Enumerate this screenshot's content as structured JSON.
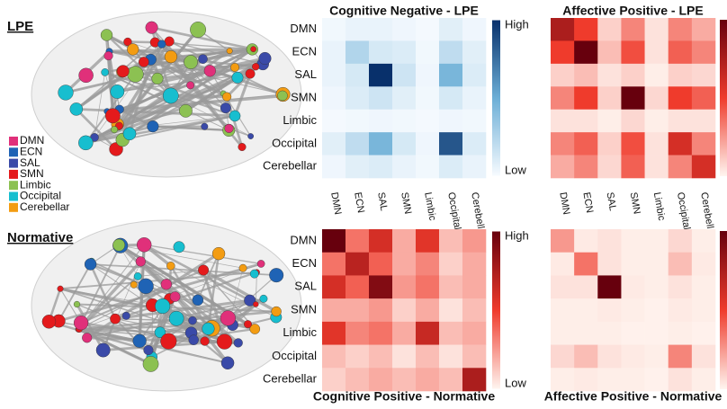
{
  "labels": {
    "lpe": "LPE",
    "normative": "Normative"
  },
  "legend": [
    {
      "name": "DMN",
      "color": "#e0307a"
    },
    {
      "name": "ECN",
      "color": "#1f63b5"
    },
    {
      "name": "SAL",
      "color": "#3a4aa8"
    },
    {
      "name": "SMN",
      "color": "#e41a1c"
    },
    {
      "name": "Limbic",
      "color": "#8cc152"
    },
    {
      "name": "Occipital",
      "color": "#17becf"
    },
    {
      "name": "Cerebellar",
      "color": "#f39c12"
    }
  ],
  "chart_data": [
    {
      "type": "heatmap",
      "title": "Cognitive Negative - LPE",
      "y_categories": [
        "DMN",
        "ECN",
        "SAL",
        "SMN",
        "Limbic",
        "Occipital",
        "Cerebellar"
      ],
      "x_categories": [
        "DMN",
        "ECN",
        "SAL",
        "SMN",
        "Limbic",
        "Occipital",
        "Cerebellar"
      ],
      "values": [
        [
          0.02,
          0.05,
          0.05,
          0.03,
          0.01,
          0.08,
          0.03
        ],
        [
          0.05,
          0.25,
          0.12,
          0.1,
          0.02,
          0.2,
          0.08
        ],
        [
          0.05,
          0.12,
          1.0,
          0.15,
          0.03,
          0.45,
          0.1
        ],
        [
          0.03,
          0.1,
          0.15,
          0.08,
          0.02,
          0.12,
          0.05
        ],
        [
          0.01,
          0.02,
          0.03,
          0.02,
          0.01,
          0.03,
          0.02
        ],
        [
          0.08,
          0.2,
          0.45,
          0.12,
          0.03,
          0.85,
          0.1
        ],
        [
          0.03,
          0.08,
          0.1,
          0.05,
          0.02,
          0.1,
          0.05
        ]
      ],
      "colors": [
        "#f7fbff",
        "#6baed6",
        "#08306b"
      ],
      "zlim": [
        0,
        1
      ],
      "zticks": [
        {
          "value": 1,
          "label": "High"
        },
        {
          "value": 0,
          "label": "Low"
        }
      ]
    },
    {
      "type": "heatmap",
      "title": "Affective Positive - LPE",
      "x_categories": [
        "DMN",
        "ECN",
        "SAL",
        "SMN",
        "Limbic",
        "Occipital",
        "Cerebellar"
      ],
      "values": [
        [
          0.75,
          0.5,
          0.1,
          0.3,
          0.05,
          0.3,
          0.2
        ],
        [
          0.5,
          1.0,
          0.15,
          0.45,
          0.05,
          0.4,
          0.3
        ],
        [
          0.1,
          0.15,
          0.05,
          0.1,
          0.02,
          0.1,
          0.08
        ],
        [
          0.3,
          0.5,
          0.1,
          1.0,
          0.08,
          0.5,
          0.4
        ],
        [
          0.05,
          0.05,
          0.02,
          0.08,
          0.02,
          0.05,
          0.05
        ],
        [
          0.3,
          0.4,
          0.1,
          0.45,
          0.05,
          0.6,
          0.3
        ],
        [
          0.2,
          0.3,
          0.08,
          0.4,
          0.05,
          0.3,
          0.6
        ]
      ],
      "colors": [
        "#fff5f0",
        "#ef3b2c",
        "#67000d"
      ],
      "zlim": [
        0,
        1
      ]
    },
    {
      "type": "heatmap",
      "title": "Cognitive Positive - Normative",
      "y_categories": [
        "DMN",
        "ECN",
        "SAL",
        "SMN",
        "Limbic",
        "Occipital",
        "Cerebellar"
      ],
      "values": [
        [
          1.0,
          0.35,
          0.6,
          0.2,
          0.55,
          0.15,
          0.25
        ],
        [
          0.35,
          0.7,
          0.4,
          0.2,
          0.3,
          0.1,
          0.2
        ],
        [
          0.6,
          0.4,
          0.9,
          0.25,
          0.35,
          0.15,
          0.2
        ],
        [
          0.2,
          0.2,
          0.25,
          0.1,
          0.2,
          0.05,
          0.15
        ],
        [
          0.55,
          0.3,
          0.35,
          0.2,
          0.65,
          0.15,
          0.2
        ],
        [
          0.15,
          0.1,
          0.15,
          0.05,
          0.15,
          0.05,
          0.15
        ],
        [
          0.1,
          0.15,
          0.2,
          0.15,
          0.2,
          0.15,
          0.75
        ]
      ],
      "colors": [
        "#fff5f0",
        "#ef3b2c",
        "#67000d"
      ],
      "zlim": [
        0,
        1
      ],
      "zticks": [
        {
          "value": 1,
          "label": "High"
        },
        {
          "value": 0,
          "label": "Low"
        }
      ]
    },
    {
      "type": "heatmap",
      "title": "Affective Positive - Normative",
      "values": [
        [
          0.25,
          0.03,
          0.05,
          0.02,
          0.02,
          0.08,
          0.02
        ],
        [
          0.03,
          0.35,
          0.05,
          0.02,
          0.02,
          0.15,
          0.03
        ],
        [
          0.05,
          0.05,
          1.0,
          0.03,
          0.02,
          0.05,
          0.02
        ],
        [
          0.02,
          0.02,
          0.03,
          0.02,
          0.01,
          0.03,
          0.02
        ],
        [
          0.02,
          0.02,
          0.02,
          0.01,
          0.01,
          0.02,
          0.01
        ],
        [
          0.08,
          0.15,
          0.05,
          0.03,
          0.02,
          0.3,
          0.05
        ],
        [
          0.02,
          0.03,
          0.02,
          0.02,
          0.01,
          0.05,
          0.02
        ]
      ],
      "colors": [
        "#fff5f0",
        "#ef3b2c",
        "#67000d"
      ],
      "zlim": [
        0,
        1
      ]
    }
  ]
}
